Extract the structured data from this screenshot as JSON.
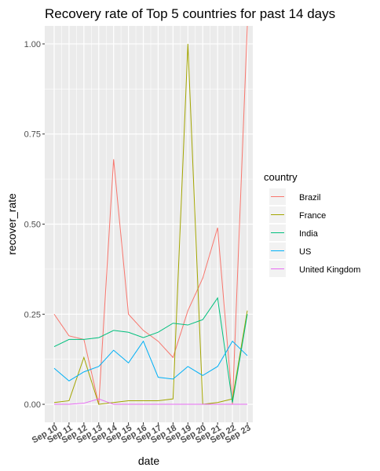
{
  "chart_data": {
    "type": "line",
    "title": "Recovery rate of Top 5 countries for past 14 days",
    "xlabel": "date",
    "ylabel": "recover_rate",
    "categories": [
      "Sep 10",
      "Sep 11",
      "Sep 12",
      "Sep 13",
      "Sep 14",
      "Sep 15",
      "Sep 16",
      "Sep 17",
      "Sep 18",
      "Sep 19",
      "Sep 20",
      "Sep 21",
      "Sep 22",
      "Sep 23"
    ],
    "ylim": [
      -0.05,
      1.05
    ],
    "yticks": [
      0.0,
      0.25,
      0.5,
      0.75,
      1.0
    ],
    "ytick_labels": [
      "0.00",
      "0.25",
      "0.50",
      "0.75",
      "1.00"
    ],
    "grid": true,
    "background": "#EBEBEB",
    "legend": {
      "title": "country",
      "position": "right"
    },
    "series": [
      {
        "name": "Brazil",
        "color": "#F8766D",
        "values": [
          0.25,
          0.19,
          0.18,
          0.0,
          0.68,
          0.25,
          0.205,
          0.175,
          0.13,
          0.26,
          0.35,
          0.49,
          0.0,
          1.05
        ]
      },
      {
        "name": "France",
        "color": "#A3A500",
        "values": [
          0.005,
          0.01,
          0.13,
          0.0,
          0.005,
          0.01,
          0.01,
          0.01,
          0.015,
          1.0,
          0.0,
          0.005,
          0.015,
          0.26
        ]
      },
      {
        "name": "India",
        "color": "#00BF7D",
        "values": [
          0.16,
          0.18,
          0.18,
          0.185,
          0.205,
          0.2,
          0.185,
          0.2,
          0.225,
          0.22,
          0.235,
          0.295,
          0.005,
          0.25
        ]
      },
      {
        "name": "US",
        "color": "#00B0F6",
        "values": [
          0.1,
          0.065,
          0.09,
          0.105,
          0.15,
          0.115,
          0.175,
          0.075,
          0.07,
          0.105,
          0.08,
          0.105,
          0.175,
          0.135
        ]
      },
      {
        "name": "United Kingdom",
        "color": "#E76BF3",
        "values": [
          0.0,
          0.0,
          0.003,
          0.015,
          0.0,
          0.0,
          0.0,
          0.0,
          0.0,
          0.0,
          0.0,
          0.0,
          0.0,
          0.0
        ]
      }
    ]
  }
}
